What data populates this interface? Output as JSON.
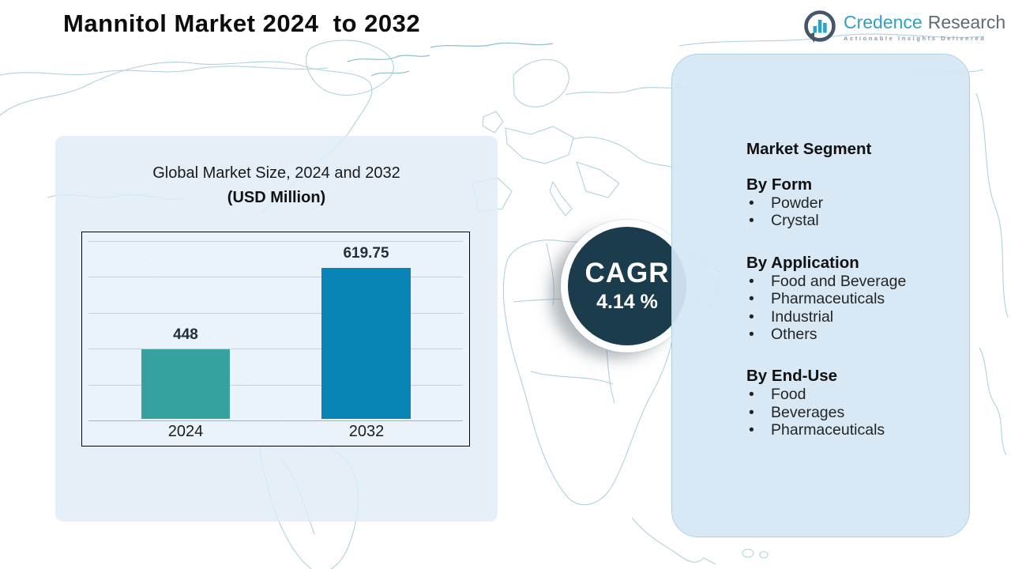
{
  "title": "Mannitol Market 2024  to 2032",
  "logo": {
    "brand_primary": "Credence",
    "brand_secondary": "Research",
    "tagline": "Actionable Insights Delivered"
  },
  "chart_panel": {
    "title_line1": "Global Market Size, 2024 and 2032",
    "title_line2": "(USD Million)"
  },
  "chart_data": {
    "type": "bar",
    "title": "Global Market Size, 2024 and 2032 (USD Million)",
    "categories": [
      "2024",
      "2032"
    ],
    "values": [
      448,
      619.75
    ],
    "value_labels": [
      "448",
      "619.75"
    ],
    "bar_colors": [
      "#36a19f",
      "#0883b6"
    ],
    "ylim": [
      300,
      680
    ],
    "grid": true,
    "gridline_count": 6,
    "legend": "none"
  },
  "cagr": {
    "label": "CAGR",
    "value": "4.14 %",
    "circle_color": "#1b3c4c"
  },
  "segments": {
    "heading": "Market Segment",
    "groups": [
      {
        "title": "By Form",
        "items": [
          "Powder",
          "Crystal"
        ]
      },
      {
        "title": "By Application",
        "items": [
          "Food and Beverage",
          "Pharmaceuticals",
          "Industrial",
          "Others"
        ]
      },
      {
        "title": "By End-Use",
        "items": [
          "Food",
          "Beverages",
          "Pharmaceuticals"
        ]
      }
    ]
  },
  "colors": {
    "bar_2024": "#36a19f",
    "bar_2032": "#0883b6",
    "cagr_circle": "#1b3c4c",
    "panel_left": "#dfebf6",
    "panel_right": "#d6e7f3",
    "map_outline": "#a9cbd9",
    "brand_teal": "#2f9fc4",
    "brand_slate": "#5c6b75"
  }
}
